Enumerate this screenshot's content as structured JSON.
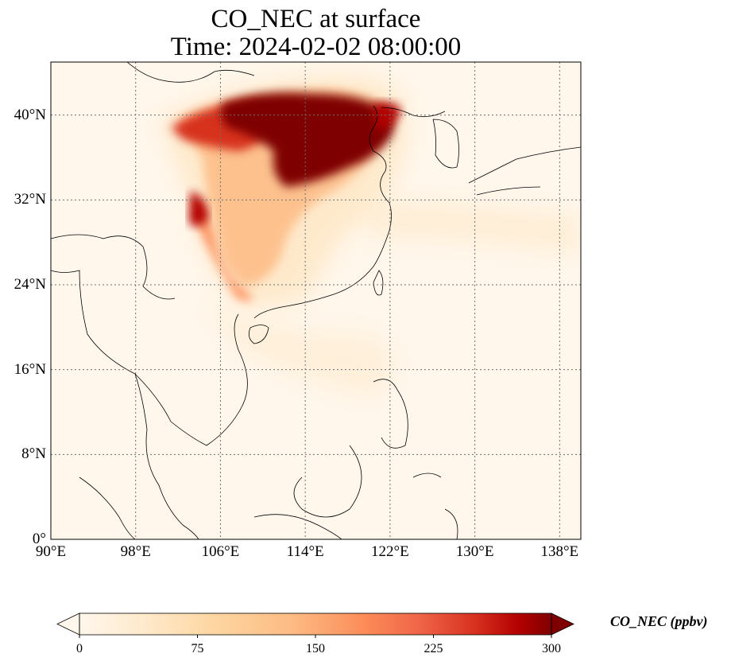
{
  "title": {
    "line1": "CO_NEC at surface",
    "line2": "Time: 2024-02-02 08:00:00"
  },
  "map": {
    "projection": "PlateCarree",
    "lon_range": [
      90,
      140
    ],
    "lat_range": [
      0,
      45
    ],
    "gridlines": true,
    "lon_ticks": [
      {
        "value": 90,
        "label": "90°E"
      },
      {
        "value": 98,
        "label": "98°E"
      },
      {
        "value": 106,
        "label": "106°E"
      },
      {
        "value": 114,
        "label": "114°E"
      },
      {
        "value": 122,
        "label": "122°E"
      },
      {
        "value": 130,
        "label": "130°E"
      },
      {
        "value": 138,
        "label": "138°E"
      }
    ],
    "lat_ticks": [
      {
        "value": 0,
        "label": "0°"
      },
      {
        "value": 8,
        "label": "8°N"
      },
      {
        "value": 16,
        "label": "16°N"
      },
      {
        "value": 24,
        "label": "24°N"
      },
      {
        "value": 32,
        "label": "32°N"
      },
      {
        "value": 40,
        "label": "40°N"
      }
    ],
    "colormap": "OrRd",
    "colors": {
      "background": "#fff7ec",
      "low": "#fdd49e",
      "mid": "#ef6548",
      "high": "#7f0000",
      "coast": "#000000",
      "grid": "#6e6e6e"
    }
  },
  "colorbar": {
    "label": "CO_NEC (ppbv)",
    "min": 0,
    "max": 300,
    "extend": "both",
    "ticks": [
      {
        "value": 0,
        "label": "0"
      },
      {
        "value": 75,
        "label": "75"
      },
      {
        "value": 150,
        "label": "150"
      },
      {
        "value": 225,
        "label": "225"
      },
      {
        "value": 300,
        "label": "300"
      }
    ]
  }
}
